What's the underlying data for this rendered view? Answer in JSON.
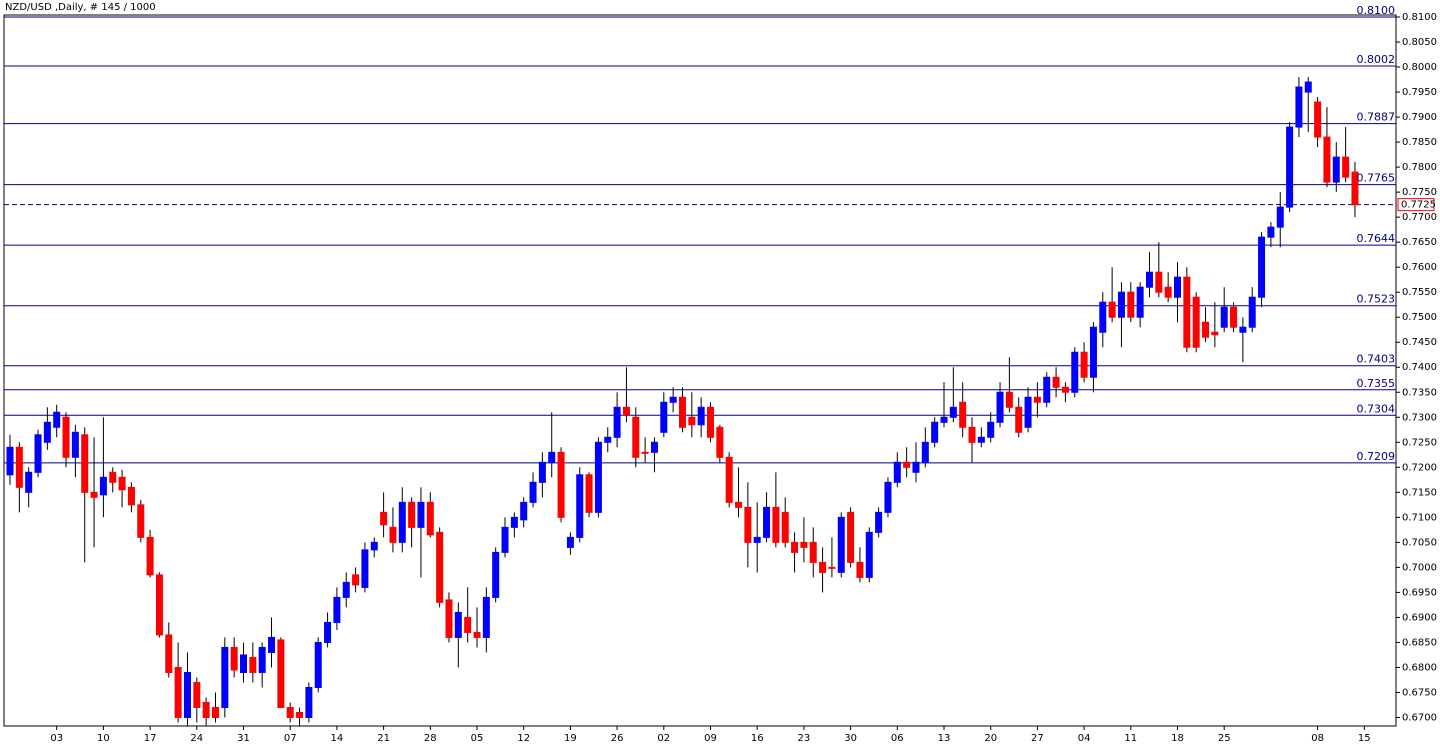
{
  "chart_data": {
    "type": "candlestick",
    "title": "NZD/USD ,Daily, # 145 / 1000",
    "up_color": "#0000ff",
    "down_color": "#ff0000",
    "level_color": "#000080",
    "ylim": [
      0.6683,
      0.8104
    ],
    "yticks": [
      {
        "value": 0.67,
        "label": "0.6700"
      },
      {
        "value": 0.675,
        "label": "0.6750"
      },
      {
        "value": 0.68,
        "label": "0.6800"
      },
      {
        "value": 0.685,
        "label": "0.6850"
      },
      {
        "value": 0.69,
        "label": "0.6900"
      },
      {
        "value": 0.695,
        "label": "0.6950"
      },
      {
        "value": 0.7,
        "label": "0.7000"
      },
      {
        "value": 0.705,
        "label": "0.7050"
      },
      {
        "value": 0.71,
        "label": "0.7100"
      },
      {
        "value": 0.715,
        "label": "0.7150"
      },
      {
        "value": 0.72,
        "label": "0.7200"
      },
      {
        "value": 0.725,
        "label": "0.7250"
      },
      {
        "value": 0.73,
        "label": "0.7300"
      },
      {
        "value": 0.735,
        "label": "0.7350"
      },
      {
        "value": 0.74,
        "label": "0.7400"
      },
      {
        "value": 0.745,
        "label": "0.7450"
      },
      {
        "value": 0.75,
        "label": "0.7500"
      },
      {
        "value": 0.755,
        "label": "0.7550"
      },
      {
        "value": 0.76,
        "label": "0.7600"
      },
      {
        "value": 0.765,
        "label": "0.7650"
      },
      {
        "value": 0.77,
        "label": "0.7700"
      },
      {
        "value": 0.775,
        "label": "0.7750"
      },
      {
        "value": 0.78,
        "label": "0.7800"
      },
      {
        "value": 0.785,
        "label": "0.7850"
      },
      {
        "value": 0.79,
        "label": "0.7900"
      },
      {
        "value": 0.795,
        "label": "0.7950"
      },
      {
        "value": 0.8,
        "label": "0.8000"
      },
      {
        "value": 0.805,
        "label": "0.8050"
      },
      {
        "value": 0.81,
        "label": "0.8100"
      }
    ],
    "levels": [
      {
        "value": 0.81,
        "label": "0.8100"
      },
      {
        "value": 0.8002,
        "label": "0.8002"
      },
      {
        "value": 0.7887,
        "label": "0.7887"
      },
      {
        "value": 0.7765,
        "label": "0.7765"
      },
      {
        "value": 0.7644,
        "label": "0.7644"
      },
      {
        "value": 0.7523,
        "label": "0.7523"
      },
      {
        "value": 0.7403,
        "label": "0.7403"
      },
      {
        "value": 0.7355,
        "label": "0.7355"
      },
      {
        "value": 0.7304,
        "label": "0.7304"
      },
      {
        "value": 0.7209,
        "label": "0.7209"
      }
    ],
    "current": {
      "value": 0.7725,
      "label": "0.7725"
    },
    "categories": [
      null,
      null,
      null,
      null,
      null,
      "03",
      null,
      null,
      null,
      null,
      "10",
      null,
      null,
      null,
      null,
      "17",
      null,
      null,
      null,
      null,
      "24",
      null,
      null,
      null,
      null,
      "31",
      null,
      null,
      null,
      null,
      "07",
      null,
      null,
      null,
      null,
      "14",
      null,
      null,
      null,
      null,
      "21",
      null,
      null,
      null,
      null,
      "28",
      null,
      null,
      null,
      null,
      "05",
      null,
      null,
      null,
      null,
      "12",
      null,
      null,
      null,
      null,
      "19",
      null,
      null,
      null,
      null,
      "26",
      null,
      null,
      null,
      null,
      "02",
      null,
      null,
      null,
      null,
      "09",
      null,
      null,
      null,
      null,
      "16",
      null,
      null,
      null,
      null,
      "23",
      null,
      null,
      null,
      null,
      "30",
      null,
      null,
      null,
      null,
      "06",
      null,
      null,
      null,
      null,
      "13",
      null,
      null,
      null,
      null,
      "20",
      null,
      null,
      null,
      null,
      "27",
      null,
      null,
      null,
      null,
      "04",
      null,
      null,
      null,
      null,
      "11",
      null,
      null,
      null,
      null,
      "18",
      null,
      null,
      null,
      null,
      "25",
      null,
      null,
      null,
      null,
      null,
      null,
      null,
      null,
      null,
      "08",
      null,
      null,
      null,
      null,
      "15"
    ],
    "open": [
      0.7185,
      0.724,
      0.715,
      0.719,
      0.725,
      0.728,
      0.73,
      0.722,
      0.7265,
      0.715,
      0.7145,
      0.719,
      0.718,
      0.716,
      0.7125,
      0.706,
      0.6985,
      0.6865,
      0.68,
      0.67,
      0.677,
      0.673,
      0.672,
      0.672,
      0.684,
      0.679,
      0.682,
      0.679,
      0.683,
      0.6855,
      0.672,
      0.671,
      0.67,
      0.676,
      0.685,
      0.689,
      0.694,
      0.6985,
      0.696,
      0.7035,
      0.711,
      0.708,
      0.705,
      0.713,
      0.708,
      0.713,
      0.707,
      0.6935,
      0.686,
      0.69,
      0.687,
      0.686,
      0.694,
      0.703,
      0.708,
      0.7095,
      0.713,
      0.717,
      0.721,
      0.723,
      0.704,
      0.706,
      0.7185,
      0.711,
      0.725,
      0.726,
      0.732,
      0.73,
      0.723,
      0.723,
      0.727,
      0.733,
      0.734,
      0.73,
      0.7285,
      0.732,
      0.728,
      0.722,
      0.713,
      0.712,
      0.705,
      0.706,
      0.712,
      0.711,
      0.705,
      0.705,
      0.705,
      0.701,
      0.7,
      0.699,
      0.711,
      0.701,
      0.698,
      0.707,
      0.711,
      0.717,
      0.721,
      0.719,
      0.721,
      0.725,
      0.729,
      0.73,
      0.733,
      0.728,
      0.725,
      0.726,
      0.729,
      0.735,
      0.732,
      0.728,
      0.734,
      0.733,
      0.738,
      0.736,
      0.735,
      0.743,
      0.738,
      0.747,
      0.753,
      0.75,
      0.755,
      0.75,
      0.756,
      0.759,
      0.756,
      0.754,
      0.758,
      0.754,
      0.749,
      0.747,
      0.748,
      0.752,
      0.747,
      0.748,
      0.754,
      0.766,
      0.768,
      0.772,
      0.788,
      0.795,
      0.793,
      0.786,
      0.777,
      0.782,
      0.779,
      null
    ],
    "high": [
      0.7265,
      0.725,
      0.72,
      0.7275,
      0.732,
      0.7325,
      0.731,
      0.7285,
      0.728,
      0.726,
      0.73,
      0.72,
      0.7195,
      0.717,
      0.7135,
      0.7075,
      0.699,
      0.689,
      0.685,
      0.683,
      0.678,
      0.674,
      0.675,
      0.686,
      0.686,
      0.685,
      0.685,
      0.685,
      0.69,
      0.686,
      0.673,
      0.672,
      0.677,
      0.686,
      0.691,
      0.696,
      0.699,
      0.7,
      0.705,
      0.706,
      0.715,
      0.712,
      0.716,
      0.714,
      0.716,
      0.715,
      0.708,
      0.695,
      0.693,
      0.696,
      0.692,
      0.696,
      0.704,
      0.71,
      0.711,
      0.714,
      0.719,
      0.723,
      0.731,
      0.724,
      0.707,
      0.72,
      0.719,
      0.726,
      0.728,
      0.735,
      0.74,
      0.732,
      0.726,
      0.726,
      0.735,
      0.736,
      0.736,
      0.735,
      0.734,
      0.733,
      0.7285,
      0.723,
      0.72,
      0.717,
      0.713,
      0.715,
      0.719,
      0.714,
      0.707,
      0.71,
      0.708,
      0.704,
      0.706,
      0.711,
      0.712,
      0.704,
      0.708,
      0.712,
      0.718,
      0.723,
      0.724,
      0.725,
      0.728,
      0.73,
      0.737,
      0.74,
      0.737,
      0.73,
      0.728,
      0.731,
      0.737,
      0.742,
      0.734,
      0.736,
      0.737,
      0.739,
      0.74,
      0.737,
      0.744,
      0.745,
      0.749,
      0.755,
      0.76,
      0.757,
      0.757,
      0.757,
      0.763,
      0.765,
      0.759,
      0.761,
      0.76,
      0.755,
      0.752,
      0.753,
      0.756,
      0.753,
      0.75,
      0.756,
      0.767,
      0.769,
      0.775,
      0.789,
      0.798,
      0.798,
      0.794,
      0.792,
      0.785,
      0.788,
      0.781,
      null
    ],
    "low": [
      0.7165,
      0.711,
      0.712,
      0.718,
      0.7235,
      0.726,
      0.72,
      0.718,
      0.701,
      0.704,
      0.71,
      0.715,
      0.712,
      0.711,
      0.705,
      0.698,
      0.686,
      0.678,
      0.669,
      0.668,
      0.669,
      0.668,
      0.669,
      0.67,
      0.678,
      0.677,
      0.677,
      0.676,
      0.68,
      0.672,
      0.669,
      0.668,
      0.669,
      0.675,
      0.684,
      0.6875,
      0.692,
      0.695,
      0.695,
      0.702,
      0.706,
      0.703,
      0.703,
      0.704,
      0.698,
      0.706,
      0.692,
      0.685,
      0.68,
      0.685,
      0.684,
      0.683,
      0.693,
      0.702,
      0.706,
      0.708,
      0.712,
      0.714,
      0.718,
      0.709,
      0.7025,
      0.705,
      0.71,
      0.71,
      0.723,
      0.724,
      0.729,
      0.72,
      0.721,
      0.719,
      0.726,
      0.731,
      0.727,
      0.726,
      0.726,
      0.725,
      0.721,
      0.712,
      0.71,
      0.7,
      0.699,
      0.705,
      0.704,
      0.704,
      0.699,
      0.701,
      0.698,
      0.695,
      0.698,
      0.698,
      0.7,
      0.697,
      0.697,
      0.706,
      0.71,
      0.716,
      0.718,
      0.717,
      0.72,
      0.724,
      0.728,
      0.729,
      0.726,
      0.721,
      0.724,
      0.725,
      0.728,
      0.731,
      0.726,
      0.727,
      0.73,
      0.732,
      0.734,
      0.733,
      0.734,
      0.737,
      0.735,
      0.744,
      0.749,
      0.744,
      0.749,
      0.748,
      0.754,
      0.754,
      0.753,
      0.749,
      0.743,
      0.743,
      0.745,
      0.744,
      0.747,
      0.747,
      0.741,
      0.747,
      0.752,
      0.764,
      0.764,
      0.771,
      0.786,
      0.787,
      0.784,
      0.776,
      0.775,
      0.777,
      0.77,
      null
    ],
    "close": [
      0.724,
      0.716,
      0.719,
      0.7265,
      0.729,
      0.731,
      0.722,
      0.727,
      0.715,
      0.714,
      0.718,
      0.717,
      0.7155,
      0.7125,
      0.706,
      0.6985,
      0.6865,
      0.679,
      0.67,
      0.679,
      0.672,
      0.67,
      0.67,
      0.684,
      0.6795,
      0.6825,
      0.679,
      0.684,
      0.686,
      0.672,
      0.67,
      0.67,
      0.676,
      0.685,
      0.689,
      0.694,
      0.697,
      0.6965,
      0.7035,
      0.705,
      0.7085,
      0.705,
      0.713,
      0.708,
      0.713,
      0.7065,
      0.693,
      0.686,
      0.691,
      0.687,
      0.686,
      0.694,
      0.703,
      0.708,
      0.71,
      0.713,
      0.717,
      0.721,
      0.723,
      0.71,
      0.706,
      0.7185,
      0.711,
      0.725,
      0.726,
      0.732,
      0.7305,
      0.722,
      0.723,
      0.725,
      0.733,
      0.734,
      0.728,
      0.7285,
      0.732,
      0.726,
      0.722,
      0.713,
      0.712,
      0.705,
      0.706,
      0.712,
      0.705,
      0.705,
      0.703,
      0.704,
      0.701,
      0.699,
      0.7,
      0.71,
      0.701,
      0.698,
      0.707,
      0.711,
      0.717,
      0.721,
      0.72,
      0.721,
      0.725,
      0.729,
      0.73,
      0.732,
      0.728,
      0.725,
      0.726,
      0.729,
      0.735,
      0.732,
      0.727,
      0.734,
      0.733,
      0.738,
      0.736,
      0.735,
      0.743,
      0.738,
      0.748,
      0.753,
      0.75,
      0.755,
      0.75,
      0.756,
      0.759,
      0.755,
      0.754,
      0.758,
      0.744,
      0.744,
      0.746,
      0.7465,
      0.752,
      0.748,
      0.748,
      0.754,
      0.766,
      0.768,
      0.772,
      0.788,
      0.796,
      0.797,
      0.786,
      0.777,
      0.782,
      0.778,
      0.7725,
      null
    ]
  }
}
